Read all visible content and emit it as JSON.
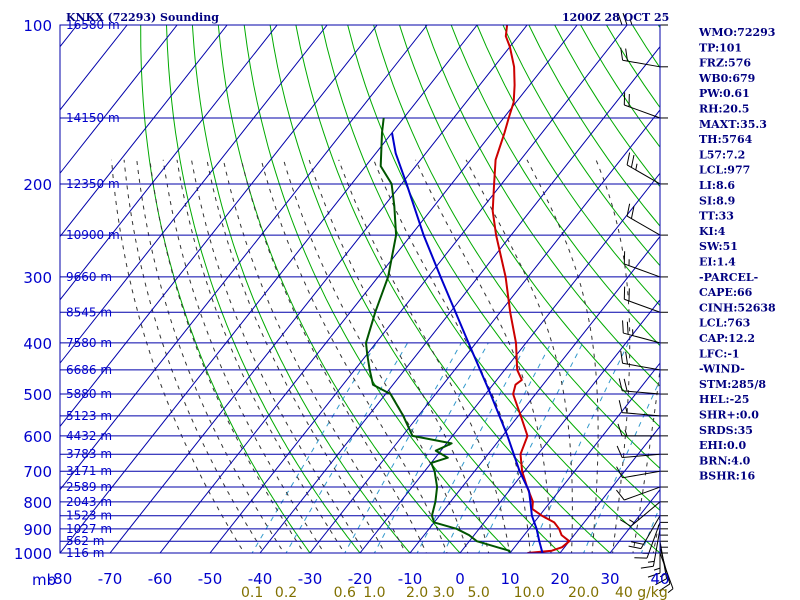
{
  "chart_data": {
    "type": "line",
    "title": "KNKX (72293) Sounding",
    "time": "1200Z 28 OCT 25",
    "xlabel": "",
    "ylabel": "mb",
    "xlim": [
      -80,
      40
    ],
    "ylim": [
      1000,
      100
    ],
    "y_scale": "log",
    "x_ticks": [
      -80,
      -70,
      -60,
      -50,
      -40,
      -30,
      -20,
      -10,
      0,
      10,
      20,
      30,
      40
    ],
    "x_tick_labels": [
      "-80",
      "-70",
      "-60",
      "-50",
      "-40",
      "-30",
      "-20",
      "-10",
      "0",
      "10",
      "20",
      "30",
      "40"
    ],
    "y_ticks": [
      100,
      200,
      300,
      400,
      500,
      600,
      700,
      800,
      900,
      1000
    ],
    "y_tick_labels": [
      "100",
      "200",
      "300",
      "400",
      "500",
      "600",
      "700",
      "800",
      "900",
      "1000"
    ],
    "height_labels": [
      {
        "p": 100,
        "label": "16580 m"
      },
      {
        "p": 150,
        "label": "14150 m"
      },
      {
        "p": 200,
        "label": "12350 m"
      },
      {
        "p": 250,
        "label": "10900 m"
      },
      {
        "p": 300,
        "label": "9660 m"
      },
      {
        "p": 350,
        "label": "8545 m"
      },
      {
        "p": 400,
        "label": "7580 m"
      },
      {
        "p": 450,
        "label": "6686 m"
      },
      {
        "p": 500,
        "label": "5880 m"
      },
      {
        "p": 550,
        "label": "5123 m"
      },
      {
        "p": 600,
        "label": "4432 m"
      },
      {
        "p": 650,
        "label": "3783 m"
      },
      {
        "p": 700,
        "label": "3171 m"
      },
      {
        "p": 750,
        "label": "2589 m"
      },
      {
        "p": 800,
        "label": "2043 m"
      },
      {
        "p": 850,
        "label": "1523 m"
      },
      {
        "p": 900,
        "label": "1027 m"
      },
      {
        "p": 950,
        "label": "562 m"
      },
      {
        "p": 1000,
        "label": "116 m"
      }
    ],
    "mixing_ratio_labels": [
      {
        "value": 0.1,
        "label": "0.1"
      },
      {
        "value": 0.2,
        "label": "0.2"
      },
      {
        "value": 0.6,
        "label": "0.6"
      },
      {
        "value": 1.0,
        "label": "1.0"
      },
      {
        "value": 2.0,
        "label": "2.0"
      },
      {
        "value": 3.0,
        "label": "3.0"
      },
      {
        "value": 5.0,
        "label": "5.0"
      },
      {
        "value": 10.0,
        "label": "10.0"
      },
      {
        "value": 20.0,
        "label": "20.0"
      },
      {
        "value": 40.0,
        "label": "40 g/kg"
      }
    ],
    "series": [
      {
        "color": "#cc0000",
        "points": [
          {
            "p": 1000,
            "t": 13.5
          },
          {
            "p": 990,
            "t": 18.0
          },
          {
            "p": 975,
            "t": 19.5
          },
          {
            "p": 950,
            "t": 20.0
          },
          {
            "p": 925,
            "t": 17.5
          },
          {
            "p": 900,
            "t": 16.0
          },
          {
            "p": 875,
            "t": 14.0
          },
          {
            "p": 850,
            "t": 10.5
          },
          {
            "p": 825,
            "t": 7.5
          },
          {
            "p": 800,
            "t": 6.5
          },
          {
            "p": 750,
            "t": 3.0
          },
          {
            "p": 700,
            "t": -0.5
          },
          {
            "p": 650,
            "t": -3.5
          },
          {
            "p": 600,
            "t": -5.0
          },
          {
            "p": 550,
            "t": -9.5
          },
          {
            "p": 500,
            "t": -14.5
          },
          {
            "p": 480,
            "t": -15.5
          },
          {
            "p": 470,
            "t": -15.0
          },
          {
            "p": 450,
            "t": -17.5
          },
          {
            "p": 400,
            "t": -22.0
          },
          {
            "p": 350,
            "t": -28.0
          },
          {
            "p": 300,
            "t": -34.5
          },
          {
            "p": 250,
            "t": -43.0
          },
          {
            "p": 225,
            "t": -47.5
          },
          {
            "p": 200,
            "t": -51.5
          },
          {
            "p": 180,
            "t": -55.0
          },
          {
            "p": 160,
            "t": -57.5
          },
          {
            "p": 150,
            "t": -59.0
          },
          {
            "p": 140,
            "t": -60.5
          },
          {
            "p": 130,
            "t": -63.0
          },
          {
            "p": 120,
            "t": -66.0
          },
          {
            "p": 110,
            "t": -70.0
          },
          {
            "p": 105,
            "t": -72.5
          },
          {
            "p": 100,
            "t": -74.0
          }
        ]
      },
      {
        "color": "#005500",
        "points": [
          {
            "p": 1000,
            "t": 10.0
          },
          {
            "p": 990,
            "t": 9.5
          },
          {
            "p": 975,
            "t": 6.5
          },
          {
            "p": 950,
            "t": 1.5
          },
          {
            "p": 925,
            "t": -1.0
          },
          {
            "p": 900,
            "t": -4.5
          },
          {
            "p": 875,
            "t": -10.0
          },
          {
            "p": 850,
            "t": -11.5
          },
          {
            "p": 800,
            "t": -13.0
          },
          {
            "p": 750,
            "t": -15.0
          },
          {
            "p": 700,
            "t": -18.0
          },
          {
            "p": 675,
            "t": -20.0
          },
          {
            "p": 660,
            "t": -17.5
          },
          {
            "p": 640,
            "t": -21.0
          },
          {
            "p": 620,
            "t": -19.0
          },
          {
            "p": 600,
            "t": -28.0
          },
          {
            "p": 550,
            "t": -33.0
          },
          {
            "p": 500,
            "t": -39.0
          },
          {
            "p": 480,
            "t": -44.0
          },
          {
            "p": 450,
            "t": -47.0
          },
          {
            "p": 420,
            "t": -50.0
          },
          {
            "p": 400,
            "t": -52.0
          },
          {
            "p": 350,
            "t": -55.0
          },
          {
            "p": 300,
            "t": -58.0
          },
          {
            "p": 250,
            "t": -63.0
          },
          {
            "p": 220,
            "t": -68.0
          },
          {
            "p": 200,
            "t": -72.0
          },
          {
            "p": 185,
            "t": -77.0
          },
          {
            "p": 160,
            "t": -82.0
          },
          {
            "p": 150,
            "t": -84.0
          }
        ]
      },
      {
        "color": "#0000cc",
        "points": [
          {
            "p": 1000,
            "t": 16.5
          },
          {
            "p": 950,
            "t": 14.0
          },
          {
            "p": 900,
            "t": 11.5
          },
          {
            "p": 850,
            "t": 8.5
          },
          {
            "p": 800,
            "t": 6.0
          },
          {
            "p": 763,
            "t": 4.0
          },
          {
            "p": 700,
            "t": -1.0
          },
          {
            "p": 600,
            "t": -9.0
          },
          {
            "p": 500,
            "t": -19.0
          },
          {
            "p": 400,
            "t": -31.5
          },
          {
            "p": 300,
            "t": -47.5
          },
          {
            "p": 250,
            "t": -57.5
          },
          {
            "p": 200,
            "t": -69.0
          },
          {
            "p": 175,
            "t": -76.0
          },
          {
            "p": 160,
            "t": -80.0
          }
        ]
      }
    ],
    "wind_barbs": [
      {
        "p": 1000,
        "dir": 160,
        "spd": 5
      },
      {
        "p": 975,
        "dir": 165,
        "spd": 10
      },
      {
        "p": 950,
        "dir": 170,
        "spd": 15
      },
      {
        "p": 925,
        "dir": 180,
        "spd": 15
      },
      {
        "p": 900,
        "dir": 190,
        "spd": 15
      },
      {
        "p": 875,
        "dir": 200,
        "spd": 15
      },
      {
        "p": 850,
        "dir": 210,
        "spd": 20
      },
      {
        "p": 800,
        "dir": 230,
        "spd": 15
      },
      {
        "p": 750,
        "dir": 250,
        "spd": 10
      },
      {
        "p": 700,
        "dir": 260,
        "spd": 10
      },
      {
        "p": 650,
        "dir": 265,
        "spd": 10
      },
      {
        "p": 600,
        "dir": 270,
        "spd": 15
      },
      {
        "p": 550,
        "dir": 275,
        "spd": 15
      },
      {
        "p": 500,
        "dir": 275,
        "spd": 20
      },
      {
        "p": 450,
        "dir": 280,
        "spd": 20
      },
      {
        "p": 400,
        "dir": 285,
        "spd": 25
      },
      {
        "p": 350,
        "dir": 290,
        "spd": 20
      },
      {
        "p": 300,
        "dir": 290,
        "spd": 15
      },
      {
        "p": 250,
        "dir": 300,
        "spd": 20
      },
      {
        "p": 200,
        "dir": 300,
        "spd": 25
      },
      {
        "p": 150,
        "dir": 290,
        "spd": 20
      },
      {
        "p": 120,
        "dir": 280,
        "spd": 20
      },
      {
        "p": 100,
        "dir": 270,
        "spd": 25
      }
    ]
  },
  "indices": [
    "WMO:72293",
    "TP:101",
    "FRZ:576",
    "WB0:679",
    "PW:0.61",
    "RH:20.5",
    "MAXT:35.3",
    "TH:5764",
    "L57:7.2",
    "LCL:977",
    "LI:8.6",
    "SI:8.9",
    "TT:33",
    "KI:4",
    "SW:51",
    "EI:1.4",
    "-PARCEL-",
    "CAPE:66",
    "CINH:52638",
    "LCL:763",
    "CAP:12.2",
    "LFC:-1",
    "-WIND-",
    "STM:285/8",
    "HEL:-25",
    "SHR+:0.0",
    "SRDS:35",
    "EHI:0.0",
    "BRN:4.0",
    "BSHR:16"
  ],
  "colors": {
    "grid": "#0000aa",
    "dry_adiabat": "#00aa00",
    "moist_adiabat": "#333333",
    "mixing_ratio": "#3399cc",
    "temperature": "#cc0000",
    "dewpoint": "#005500",
    "parcel": "#0000cc",
    "axis_text": "#0000cc",
    "mixing_text": "#807000",
    "index_text": "#000080",
    "barb": "#000000"
  }
}
